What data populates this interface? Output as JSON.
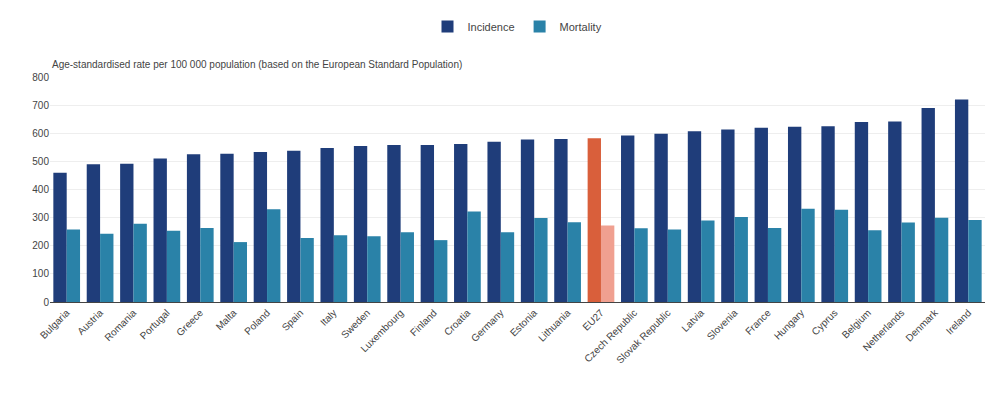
{
  "chart_data": {
    "type": "bar",
    "ylabel": "Age-standardised rate per 100 000 population (based on the European Standard Population)",
    "categories": [
      "Bulgaria",
      "Austria",
      "Romania",
      "Portugal",
      "Greece",
      "Malta",
      "Poland",
      "Spain",
      "Italy",
      "Sweden",
      "Luxembourg",
      "Finland",
      "Croatia",
      "Germany",
      "Estonia",
      "Lithuania",
      "EU27",
      "Czech Republic",
      "Slovak Republic",
      "Latvia",
      "Slovenia",
      "France",
      "Hungary",
      "Cyprus",
      "Belgium",
      "Netherlands",
      "Denmark",
      "Ireland"
    ],
    "series": [
      {
        "name": "Incidence",
        "colors": [
          "#1f3d7a",
          "#1f3d7a",
          "#1f3d7a",
          "#1f3d7a",
          "#1f3d7a",
          "#1f3d7a",
          "#1f3d7a",
          "#1f3d7a",
          "#1f3d7a",
          "#1f3d7a",
          "#1f3d7a",
          "#1f3d7a",
          "#1f3d7a",
          "#1f3d7a",
          "#1f3d7a",
          "#1f3d7a",
          "#d95f3b",
          "#1f3d7a",
          "#1f3d7a",
          "#1f3d7a",
          "#1f3d7a",
          "#1f3d7a",
          "#1f3d7a",
          "#1f3d7a",
          "#1f3d7a",
          "#1f3d7a",
          "#1f3d7a",
          "#1f3d7a"
        ],
        "values": [
          460,
          490,
          492,
          510,
          525,
          527,
          533,
          538,
          548,
          555,
          558,
          558,
          562,
          570,
          578,
          580,
          582,
          592,
          598,
          607,
          613,
          620,
          623,
          625,
          640,
          642,
          690,
          720
        ]
      },
      {
        "name": "Mortality",
        "colors": [
          "#2a82a8",
          "#2a82a8",
          "#2a82a8",
          "#2a82a8",
          "#2a82a8",
          "#2a82a8",
          "#2a82a8",
          "#2a82a8",
          "#2a82a8",
          "#2a82a8",
          "#2a82a8",
          "#2a82a8",
          "#2a82a8",
          "#2a82a8",
          "#2a82a8",
          "#2a82a8",
          "#f0a090",
          "#2a82a8",
          "#2a82a8",
          "#2a82a8",
          "#2a82a8",
          "#2a82a8",
          "#2a82a8",
          "#2a82a8",
          "#2a82a8",
          "#2a82a8",
          "#2a82a8",
          "#2a82a8"
        ],
        "values": [
          258,
          243,
          278,
          253,
          263,
          213,
          330,
          228,
          237,
          234,
          248,
          220,
          322,
          248,
          299,
          284,
          272,
          262,
          258,
          290,
          302,
          263,
          332,
          328,
          255,
          283,
          300,
          292
        ]
      }
    ],
    "ylim": [
      0,
      800
    ],
    "yticks": [
      0,
      100,
      200,
      300,
      400,
      500,
      600,
      700,
      800
    ],
    "grid": true,
    "legend": "top"
  }
}
